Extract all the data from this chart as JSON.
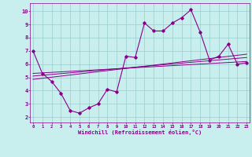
{
  "xlabel": "Windchill (Refroidissement éolien,°C)",
  "bg_color": "#c8eeee",
  "line_color": "#880088",
  "grid_color": "#99cccc",
  "x_ticks": [
    0,
    1,
    2,
    3,
    4,
    5,
    6,
    7,
    8,
    9,
    10,
    11,
    12,
    13,
    14,
    15,
    16,
    17,
    18,
    19,
    20,
    21,
    22,
    23
  ],
  "y_ticks": [
    2,
    3,
    4,
    5,
    6,
    7,
    8,
    9,
    10
  ],
  "xlim": [
    -0.3,
    23.3
  ],
  "ylim": [
    1.6,
    10.6
  ],
  "main_x": [
    0,
    1,
    2,
    3,
    4,
    5,
    6,
    7,
    8,
    9,
    10,
    11,
    12,
    13,
    14,
    15,
    16,
    17,
    18,
    19,
    20,
    21,
    22,
    23
  ],
  "main_y": [
    7.0,
    5.3,
    4.7,
    3.8,
    2.5,
    2.3,
    2.7,
    3.0,
    4.1,
    3.9,
    6.6,
    6.5,
    9.1,
    8.5,
    8.5,
    9.1,
    9.5,
    10.1,
    8.4,
    6.3,
    6.6,
    7.5,
    6.0,
    6.1
  ],
  "trend1_x": [
    0,
    23
  ],
  "trend1_y": [
    5.3,
    6.2
  ],
  "trend2_x": [
    0,
    23
  ],
  "trend2_y": [
    5.1,
    6.5
  ],
  "trend3_x": [
    0,
    23
  ],
  "trend3_y": [
    4.85,
    6.75
  ]
}
